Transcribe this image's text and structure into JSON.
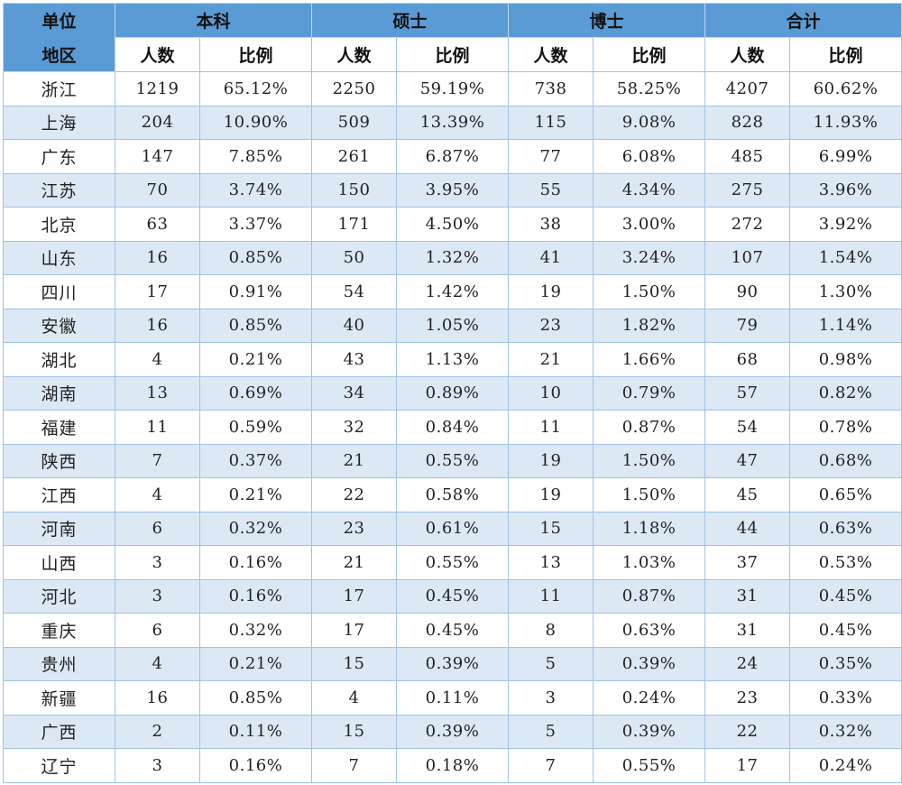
{
  "header": {
    "region_top": "单位",
    "region_bottom": "地区",
    "groups": [
      "本科",
      "硕士",
      "博士",
      "合计"
    ],
    "count_label": "人数",
    "ratio_label": "比例"
  },
  "rows": [
    {
      "region": "浙江",
      "cells": [
        "1219",
        "65.12%",
        "2250",
        "59.19%",
        "738",
        "58.25%",
        "4207",
        "60.62%"
      ]
    },
    {
      "region": "上海",
      "cells": [
        "204",
        "10.90%",
        "509",
        "13.39%",
        "115",
        "9.08%",
        "828",
        "11.93%"
      ]
    },
    {
      "region": "广东",
      "cells": [
        "147",
        "7.85%",
        "261",
        "6.87%",
        "77",
        "6.08%",
        "485",
        "6.99%"
      ]
    },
    {
      "region": "江苏",
      "cells": [
        "70",
        "3.74%",
        "150",
        "3.95%",
        "55",
        "4.34%",
        "275",
        "3.96%"
      ]
    },
    {
      "region": "北京",
      "cells": [
        "63",
        "3.37%",
        "171",
        "4.50%",
        "38",
        "3.00%",
        "272",
        "3.92%"
      ]
    },
    {
      "region": "山东",
      "cells": [
        "16",
        "0.85%",
        "50",
        "1.32%",
        "41",
        "3.24%",
        "107",
        "1.54%"
      ]
    },
    {
      "region": "四川",
      "cells": [
        "17",
        "0.91%",
        "54",
        "1.42%",
        "19",
        "1.50%",
        "90",
        "1.30%"
      ]
    },
    {
      "region": "安徽",
      "cells": [
        "16",
        "0.85%",
        "40",
        "1.05%",
        "23",
        "1.82%",
        "79",
        "1.14%"
      ]
    },
    {
      "region": "湖北",
      "cells": [
        "4",
        "0.21%",
        "43",
        "1.13%",
        "21",
        "1.66%",
        "68",
        "0.98%"
      ]
    },
    {
      "region": "湖南",
      "cells": [
        "13",
        "0.69%",
        "34",
        "0.89%",
        "10",
        "0.79%",
        "57",
        "0.82%"
      ]
    },
    {
      "region": "福建",
      "cells": [
        "11",
        "0.59%",
        "32",
        "0.84%",
        "11",
        "0.87%",
        "54",
        "0.78%"
      ]
    },
    {
      "region": "陕西",
      "cells": [
        "7",
        "0.37%",
        "21",
        "0.55%",
        "19",
        "1.50%",
        "47",
        "0.68%"
      ]
    },
    {
      "region": "江西",
      "cells": [
        "4",
        "0.21%",
        "22",
        "0.58%",
        "19",
        "1.50%",
        "45",
        "0.65%"
      ]
    },
    {
      "region": "河南",
      "cells": [
        "6",
        "0.32%",
        "23",
        "0.61%",
        "15",
        "1.18%",
        "44",
        "0.63%"
      ]
    },
    {
      "region": "山西",
      "cells": [
        "3",
        "0.16%",
        "21",
        "0.55%",
        "13",
        "1.03%",
        "37",
        "0.53%"
      ]
    },
    {
      "region": "河北",
      "cells": [
        "3",
        "0.16%",
        "17",
        "0.45%",
        "11",
        "0.87%",
        "31",
        "0.45%"
      ]
    },
    {
      "region": "重庆",
      "cells": [
        "6",
        "0.32%",
        "17",
        "0.45%",
        "8",
        "0.63%",
        "31",
        "0.45%"
      ]
    },
    {
      "region": "贵州",
      "cells": [
        "4",
        "0.21%",
        "15",
        "0.39%",
        "5",
        "0.39%",
        "24",
        "0.35%"
      ]
    },
    {
      "region": "新疆",
      "cells": [
        "16",
        "0.85%",
        "4",
        "0.11%",
        "3",
        "0.24%",
        "23",
        "0.33%"
      ]
    },
    {
      "region": "广西",
      "cells": [
        "2",
        "0.11%",
        "15",
        "0.39%",
        "5",
        "0.39%",
        "22",
        "0.32%"
      ]
    },
    {
      "region": "辽宁",
      "cells": [
        "3",
        "0.16%",
        "7",
        "0.18%",
        "7",
        "0.55%",
        "17",
        "0.24%"
      ]
    }
  ],
  "colors": {
    "header_bg": "#5b9bd5",
    "row_alt_bg": "#dde8f5",
    "border": "#9fc3e6"
  }
}
